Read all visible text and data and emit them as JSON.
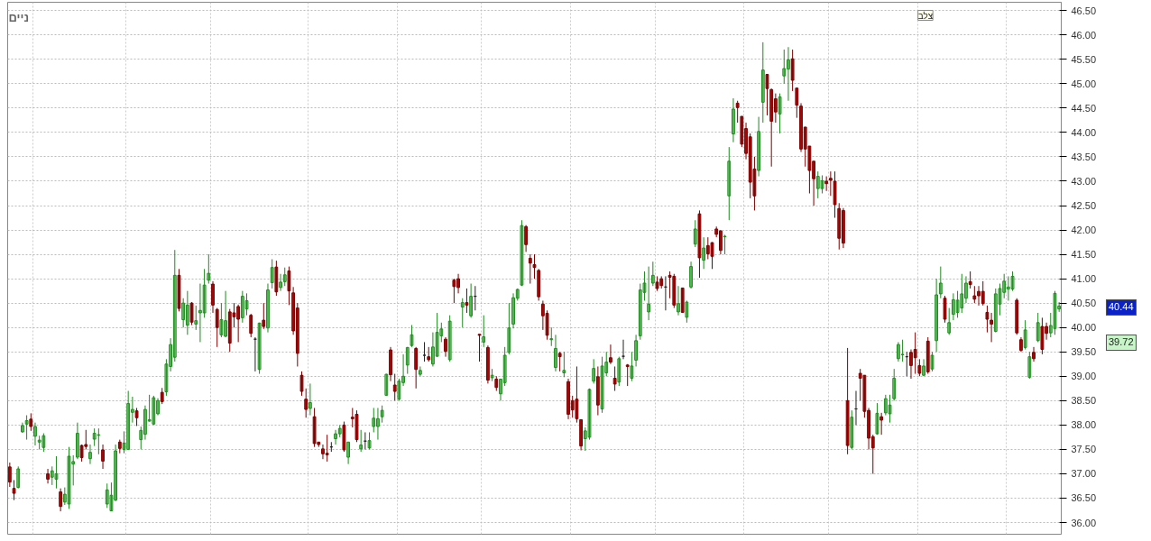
{
  "chart_data": {
    "type": "candlestick",
    "categories": [
      null,
      null,
      null,
      null,
      null,
      null,
      null,
      null,
      null,
      null,
      null,
      null,
      null,
      null,
      null,
      null,
      null,
      null,
      null,
      null,
      null,
      null,
      null,
      null,
      null,
      null,
      null,
      null,
      null,
      null,
      null,
      null,
      null,
      null,
      null,
      null,
      null,
      null,
      null,
      null,
      null,
      null,
      null,
      null,
      null,
      null,
      null,
      null,
      null,
      null,
      null,
      null,
      null,
      null,
      null,
      null,
      null,
      null,
      null,
      null,
      null,
      null,
      null,
      null,
      null,
      null,
      null,
      null,
      null,
      null,
      null,
      null,
      null,
      null,
      null,
      null,
      null,
      null,
      null,
      null,
      null,
      null,
      null,
      null,
      null,
      null,
      null,
      null,
      null,
      null,
      null,
      null,
      null,
      null,
      null,
      null,
      null,
      null,
      null,
      null,
      null,
      null,
      null,
      null,
      null,
      null,
      null,
      null,
      null,
      null,
      null,
      null,
      null,
      null,
      null,
      null,
      null,
      null,
      null,
      null,
      null,
      null,
      null,
      null,
      null,
      null,
      null,
      null,
      null,
      null,
      null,
      null,
      null,
      null,
      null,
      null,
      null,
      null,
      null,
      null,
      null,
      null,
      null,
      null,
      null,
      null,
      null,
      null,
      null,
      null,
      null,
      null,
      null,
      null,
      null,
      null,
      null,
      null,
      null,
      null,
      null,
      null,
      null,
      null,
      null,
      null,
      null,
      null,
      null,
      null,
      null,
      null,
      null,
      null,
      null,
      null,
      null,
      null,
      null,
      null,
      null,
      null,
      null,
      null,
      null,
      null,
      null,
      null,
      null,
      null,
      null,
      null,
      null,
      null,
      null,
      null,
      null,
      null,
      null,
      null,
      null,
      null,
      null,
      null,
      null,
      null,
      null,
      null,
      null,
      null,
      null,
      null,
      null,
      null,
      null,
      null,
      null,
      null,
      null,
      null,
      null,
      null,
      null,
      null,
      null,
      null,
      null,
      null,
      null,
      null,
      null,
      null,
      null,
      null,
      null,
      null,
      null,
      null,
      null,
      null,
      null,
      null,
      null,
      null,
      null,
      null,
      null,
      null,
      null
    ],
    "ohlc": [
      [
        37.14,
        37.23,
        36.73,
        36.83
      ],
      [
        36.7,
        36.87,
        36.46,
        36.6
      ],
      [
        36.72,
        37.15,
        36.7,
        37.1
      ],
      [
        37.86,
        38.05,
        37.84,
        37.99
      ],
      [
        38.02,
        38.2,
        37.7,
        38.09
      ],
      [
        38.12,
        38.24,
        37.88,
        37.97
      ],
      [
        37.77,
        38.05,
        37.58,
        37.97
      ],
      [
        37.65,
        37.78,
        37.5,
        37.69
      ],
      [
        37.54,
        37.83,
        37.45,
        37.78
      ],
      [
        37.0,
        37.1,
        36.8,
        36.89
      ],
      [
        36.93,
        37.15,
        36.77,
        37.06
      ],
      [
        36.89,
        37.36,
        36.7,
        37.0
      ],
      [
        36.63,
        36.7,
        36.23,
        36.33
      ],
      [
        36.42,
        36.72,
        36.36,
        36.58
      ],
      [
        36.38,
        37.55,
        36.28,
        37.36
      ],
      [
        37.2,
        37.38,
        36.76,
        37.25
      ],
      [
        37.34,
        38.05,
        37.3,
        37.83
      ],
      [
        37.58,
        37.6,
        37.25,
        37.33
      ],
      [
        37.6,
        37.9,
        37.5,
        37.56
      ],
      [
        37.31,
        37.6,
        37.2,
        37.44
      ],
      [
        37.71,
        37.93,
        37.57,
        37.83
      ],
      [
        37.79,
        37.93,
        37.4,
        37.8
      ],
      [
        37.49,
        37.6,
        37.1,
        37.26
      ],
      [
        36.38,
        36.8,
        36.3,
        36.67
      ],
      [
        36.24,
        36.82,
        36.24,
        36.56
      ],
      [
        36.46,
        37.6,
        36.44,
        37.47
      ],
      [
        37.65,
        37.7,
        37.42,
        37.52
      ],
      [
        37.5,
        37.87,
        37.42,
        37.63
      ],
      [
        37.5,
        38.7,
        37.5,
        38.44
      ],
      [
        38.26,
        38.58,
        38.05,
        38.32
      ],
      [
        38.29,
        38.35,
        37.98,
        38.15
      ],
      [
        37.7,
        37.97,
        37.5,
        37.89
      ],
      [
        37.81,
        38.4,
        37.7,
        38.32
      ],
      [
        38.08,
        38.62,
        38.07,
        38.11
      ],
      [
        38.02,
        38.6,
        38.0,
        38.56
      ],
      [
        38.23,
        38.55,
        38.2,
        38.5
      ],
      [
        38.67,
        38.76,
        38.43,
        38.48
      ],
      [
        38.68,
        39.35,
        38.6,
        39.25
      ],
      [
        39.2,
        39.78,
        39.1,
        39.65
      ],
      [
        39.39,
        41.59,
        39.3,
        41.07
      ],
      [
        41.07,
        41.2,
        40.33,
        40.39
      ],
      [
        40.16,
        40.6,
        40.0,
        40.5
      ],
      [
        40.05,
        40.75,
        39.85,
        40.46
      ],
      [
        40.5,
        40.52,
        40.05,
        40.11
      ],
      [
        40.07,
        40.45,
        39.95,
        40.14
      ],
      [
        40.3,
        40.9,
        39.7,
        40.35
      ],
      [
        40.3,
        41.2,
        40.2,
        40.87
      ],
      [
        40.97,
        41.5,
        40.9,
        41.11
      ],
      [
        40.89,
        40.95,
        40.3,
        40.46
      ],
      [
        40.37,
        40.4,
        39.6,
        40.0
      ],
      [
        39.85,
        40.5,
        39.8,
        40.16
      ],
      [
        39.82,
        40.75,
        39.8,
        40.14
      ],
      [
        40.32,
        40.38,
        39.5,
        39.68
      ],
      [
        40.3,
        40.5,
        40.0,
        40.22
      ],
      [
        40.43,
        40.47,
        39.7,
        40.17
      ],
      [
        40.2,
        40.75,
        40.1,
        40.64
      ],
      [
        40.38,
        40.7,
        40.25,
        40.55
      ],
      [
        40.25,
        40.28,
        39.8,
        39.88
      ],
      [
        39.76,
        39.8,
        39.1,
        39.76
      ],
      [
        39.14,
        40.1,
        39.05,
        40.09
      ],
      [
        40.15,
        40.5,
        39.97,
        40.02
      ],
      [
        39.99,
        40.9,
        39.9,
        40.77
      ],
      [
        40.92,
        41.4,
        40.8,
        41.23
      ],
      [
        41.24,
        41.37,
        40.65,
        40.73
      ],
      [
        40.82,
        41.1,
        40.75,
        40.93
      ],
      [
        40.94,
        41.23,
        40.85,
        41.08
      ],
      [
        41.16,
        41.25,
        40.46,
        40.75
      ],
      [
        40.71,
        40.83,
        39.85,
        39.93
      ],
      [
        40.4,
        40.5,
        39.2,
        39.47
      ],
      [
        39.02,
        39.1,
        38.6,
        38.69
      ],
      [
        38.53,
        38.75,
        38.15,
        38.32
      ],
      [
        38.34,
        38.85,
        38.2,
        38.46
      ],
      [
        38.17,
        38.35,
        37.55,
        37.62
      ],
      [
        37.65,
        37.65,
        37.55,
        37.6
      ],
      [
        37.51,
        37.6,
        37.3,
        37.41
      ],
      [
        37.42,
        37.8,
        37.25,
        37.39
      ],
      [
        37.55,
        37.65,
        37.45,
        37.55
      ],
      [
        37.72,
        37.9,
        37.6,
        37.82
      ],
      [
        37.82,
        38.0,
        37.75,
        37.93
      ],
      [
        38.0,
        38.07,
        37.45,
        37.49
      ],
      [
        37.34,
        37.65,
        37.2,
        37.65
      ],
      [
        38.16,
        38.35,
        37.95,
        38.13
      ],
      [
        38.22,
        38.3,
        37.65,
        37.7
      ],
      [
        37.51,
        37.9,
        37.45,
        37.59
      ],
      [
        37.67,
        37.85,
        37.5,
        37.67
      ],
      [
        37.53,
        37.85,
        37.5,
        37.68
      ],
      [
        37.97,
        38.35,
        37.85,
        38.14
      ],
      [
        37.97,
        38.35,
        37.7,
        38.13
      ],
      [
        38.17,
        38.4,
        38.05,
        38.3
      ],
      [
        38.61,
        39.05,
        38.6,
        39.04
      ],
      [
        39.54,
        39.6,
        38.9,
        39.03
      ],
      [
        38.82,
        39.05,
        38.5,
        38.69
      ],
      [
        38.53,
        38.95,
        38.5,
        38.9
      ],
      [
        38.87,
        39.45,
        38.8,
        39.0
      ],
      [
        39.23,
        39.6,
        39.05,
        39.59
      ],
      [
        39.63,
        40.05,
        39.6,
        39.85
      ],
      [
        39.57,
        39.6,
        38.75,
        39.14
      ],
      [
        39.04,
        39.2,
        39.0,
        39.12
      ],
      [
        39.43,
        39.7,
        39.3,
        39.43
      ],
      [
        39.4,
        39.6,
        39.3,
        39.34
      ],
      [
        39.25,
        39.9,
        39.2,
        39.6
      ],
      [
        39.41,
        40.3,
        39.4,
        39.9
      ],
      [
        39.83,
        40.1,
        39.7,
        39.97
      ],
      [
        39.76,
        39.8,
        39.4,
        39.51
      ],
      [
        39.34,
        40.25,
        39.3,
        40.13
      ],
      [
        40.97,
        41.0,
        40.5,
        40.84
      ],
      [
        41.0,
        41.1,
        40.7,
        40.82
      ],
      [
        40.42,
        40.6,
        40.0,
        40.51
      ],
      [
        40.51,
        40.8,
        40.3,
        40.46
      ],
      [
        40.24,
        40.9,
        40.2,
        40.64
      ],
      [
        40.64,
        40.85,
        40.35,
        40.64
      ],
      [
        39.86,
        39.86,
        39.3,
        39.84
      ],
      [
        39.7,
        40.25,
        39.6,
        39.81
      ],
      [
        39.59,
        39.63,
        38.85,
        38.92
      ],
      [
        38.97,
        39.15,
        38.9,
        39.02
      ],
      [
        38.94,
        39.0,
        38.7,
        38.77
      ],
      [
        38.64,
        38.95,
        38.5,
        38.94
      ],
      [
        38.87,
        39.6,
        38.8,
        39.43
      ],
      [
        39.49,
        40.5,
        39.45,
        39.99
      ],
      [
        40.07,
        40.7,
        39.98,
        40.61
      ],
      [
        40.6,
        40.8,
        40.55,
        40.78
      ],
      [
        40.87,
        42.2,
        40.85,
        42.09
      ],
      [
        42.07,
        42.1,
        41.55,
        41.7
      ],
      [
        41.42,
        41.5,
        40.9,
        41.32
      ],
      [
        41.29,
        41.5,
        41.0,
        41.23
      ],
      [
        41.17,
        41.2,
        40.55,
        40.63
      ],
      [
        40.48,
        40.55,
        39.95,
        40.24
      ],
      [
        40.29,
        40.35,
        39.75,
        39.84
      ],
      [
        39.75,
        40.0,
        39.62,
        39.77
      ],
      [
        39.18,
        39.85,
        39.1,
        39.57
      ],
      [
        39.47,
        39.5,
        39.1,
        39.4
      ],
      [
        39.07,
        39.5,
        38.98,
        39.12
      ],
      [
        38.89,
        38.95,
        38.12,
        38.22
      ],
      [
        38.5,
        38.6,
        38.15,
        38.31
      ],
      [
        38.53,
        39.2,
        38.05,
        38.13
      ],
      [
        38.11,
        38.11,
        37.48,
        37.57
      ],
      [
        37.72,
        37.95,
        37.47,
        37.88
      ],
      [
        37.75,
        38.75,
        37.7,
        38.73
      ],
      [
        38.9,
        39.35,
        38.85,
        39.16
      ],
      [
        38.99,
        39.2,
        38.2,
        38.41
      ],
      [
        38.33,
        39.4,
        38.25,
        39.21
      ],
      [
        39.07,
        39.5,
        39.0,
        39.29
      ],
      [
        39.38,
        39.65,
        39.25,
        39.29
      ],
      [
        38.96,
        39.2,
        38.7,
        38.84
      ],
      [
        38.88,
        39.4,
        38.8,
        39.36
      ],
      [
        39.41,
        39.75,
        39.35,
        39.41
      ],
      [
        39.23,
        39.25,
        38.8,
        39.2
      ],
      [
        38.96,
        39.5,
        38.9,
        39.21
      ],
      [
        39.33,
        39.85,
        39.2,
        39.73
      ],
      [
        39.83,
        40.9,
        39.75,
        40.77
      ],
      [
        40.72,
        41.15,
        40.55,
        40.91
      ],
      [
        40.32,
        41.25,
        40.15,
        40.48
      ],
      [
        40.91,
        41.35,
        40.85,
        41.07
      ],
      [
        40.93,
        41.05,
        40.75,
        40.8
      ],
      [
        41.0,
        41.05,
        40.8,
        40.86
      ],
      [
        40.83,
        41.05,
        40.35,
        40.83
      ],
      [
        41.07,
        41.15,
        40.6,
        41.03
      ],
      [
        41.05,
        41.1,
        40.4,
        40.46
      ],
      [
        40.32,
        40.85,
        40.25,
        40.49
      ],
      [
        40.81,
        40.81,
        40.3,
        40.31
      ],
      [
        40.21,
        40.55,
        40.1,
        40.52
      ],
      [
        40.83,
        41.35,
        40.8,
        41.25
      ],
      [
        41.71,
        42.2,
        41.65,
        42.02
      ],
      [
        42.33,
        42.4,
        41.02,
        41.43
      ],
      [
        41.38,
        41.85,
        41.2,
        41.63
      ],
      [
        41.68,
        41.85,
        41.4,
        41.51
      ],
      [
        41.74,
        41.75,
        41.2,
        41.46
      ],
      [
        42.02,
        42.07,
        41.85,
        41.91
      ],
      [
        41.98,
        42.0,
        41.5,
        41.58
      ],
      [
        41.86,
        41.9,
        41.5,
        41.87
      ],
      [
        42.7,
        43.7,
        42.2,
        43.41
      ],
      [
        43.97,
        44.7,
        43.8,
        44.48
      ],
      [
        44.6,
        44.65,
        44.2,
        44.51
      ],
      [
        44.33,
        44.33,
        43.7,
        43.76
      ],
      [
        44.08,
        44.2,
        43.45,
        43.57
      ],
      [
        43.91,
        43.98,
        42.65,
        42.98
      ],
      [
        43.25,
        43.5,
        42.4,
        42.7
      ],
      [
        43.22,
        44.32,
        43.1,
        44.02
      ],
      [
        44.62,
        45.85,
        44.2,
        45.28
      ],
      [
        45.19,
        45.2,
        44.35,
        44.9
      ],
      [
        44.88,
        44.9,
        43.3,
        44.23
      ],
      [
        44.69,
        44.8,
        44.2,
        44.42
      ],
      [
        44.38,
        44.8,
        43.98,
        44.73
      ],
      [
        45.16,
        45.7,
        45.0,
        45.31
      ],
      [
        45.3,
        45.75,
        44.65,
        45.49
      ],
      [
        45.51,
        45.7,
        44.85,
        45.07
      ],
      [
        44.91,
        44.91,
        44.3,
        44.56
      ],
      [
        44.54,
        44.6,
        43.6,
        43.66
      ],
      [
        44.11,
        44.11,
        43.3,
        43.66
      ],
      [
        43.72,
        43.72,
        42.75,
        43.22
      ],
      [
        43.41,
        43.41,
        42.5,
        43.05
      ],
      [
        42.85,
        43.2,
        42.65,
        43.1
      ],
      [
        42.85,
        43.12,
        42.75,
        43.01
      ],
      [
        43.0,
        43.1,
        42.8,
        42.95
      ],
      [
        43.06,
        43.2,
        42.7,
        43.02
      ],
      [
        43.0,
        43.2,
        42.25,
        42.52
      ],
      [
        42.44,
        42.55,
        41.6,
        41.83
      ],
      [
        42.4,
        42.45,
        41.63,
        41.73
      ],
      [
        38.5,
        39.58,
        37.4,
        37.58
      ],
      [
        37.54,
        38.3,
        37.5,
        38.16
      ],
      [
        38.33,
        38.7,
        38.0,
        38.33
      ],
      [
        39.06,
        39.15,
        38.5,
        38.96
      ],
      [
        39.02,
        39.02,
        38.15,
        38.28
      ],
      [
        38.3,
        38.35,
        37.5,
        37.73
      ],
      [
        37.76,
        37.8,
        37.0,
        37.53
      ],
      [
        37.82,
        38.45,
        37.8,
        38.24
      ],
      [
        38.17,
        38.25,
        37.8,
        38.1
      ],
      [
        38.25,
        38.62,
        38.2,
        38.54
      ],
      [
        38.23,
        38.62,
        38.05,
        38.41
      ],
      [
        38.54,
        39.15,
        38.5,
        38.96
      ],
      [
        39.36,
        39.7,
        39.3,
        39.65
      ],
      [
        39.44,
        39.75,
        39.3,
        39.45
      ],
      [
        39.4,
        39.5,
        39.0,
        39.4
      ],
      [
        39.49,
        39.55,
        38.95,
        39.22
      ],
      [
        39.55,
        39.9,
        39.05,
        39.38
      ],
      [
        39.22,
        39.35,
        39.0,
        39.06
      ],
      [
        39.02,
        39.35,
        39.0,
        39.21
      ],
      [
        39.72,
        39.8,
        39.05,
        39.09
      ],
      [
        39.15,
        39.5,
        39.1,
        39.43
      ],
      [
        39.73,
        41.0,
        39.5,
        40.67
      ],
      [
        40.69,
        41.25,
        40.6,
        40.91
      ],
      [
        40.6,
        40.65,
        40.1,
        40.17
      ],
      [
        39.89,
        40.4,
        39.85,
        40.1
      ],
      [
        40.27,
        40.7,
        40.15,
        40.57
      ],
      [
        40.31,
        40.75,
        40.2,
        40.56
      ],
      [
        40.4,
        41.1,
        40.3,
        40.69
      ],
      [
        40.6,
        41.05,
        40.5,
        40.91
      ],
      [
        40.94,
        41.15,
        40.8,
        40.88
      ],
      [
        40.65,
        40.85,
        40.5,
        40.58
      ],
      [
        40.74,
        40.85,
        40.45,
        40.65
      ],
      [
        40.74,
        40.95,
        40.45,
        40.49
      ],
      [
        40.31,
        40.45,
        39.9,
        40.17
      ],
      [
        40.15,
        40.3,
        39.7,
        40.07
      ],
      [
        39.92,
        40.8,
        39.9,
        40.69
      ],
      [
        40.48,
        40.9,
        40.25,
        40.8
      ],
      [
        40.72,
        41.1,
        40.6,
        40.95
      ],
      [
        40.79,
        41.05,
        40.55,
        40.83
      ],
      [
        40.79,
        41.15,
        40.75,
        41.05
      ],
      [
        40.56,
        40.6,
        39.85,
        39.89
      ],
      [
        39.75,
        39.8,
        39.5,
        39.53
      ],
      [
        39.59,
        40.15,
        39.55,
        39.95
      ],
      [
        38.98,
        39.5,
        38.95,
        39.4
      ],
      [
        39.49,
        39.6,
        39.3,
        39.36
      ],
      [
        39.73,
        40.3,
        39.7,
        40.1
      ],
      [
        40.02,
        40.2,
        39.45,
        39.55
      ],
      [
        40.02,
        40.1,
        39.75,
        39.88
      ],
      [
        39.89,
        40.3,
        39.8,
        40.04
      ],
      [
        39.98,
        40.75,
        39.85,
        40.7
      ],
      [
        40.38,
        40.52,
        40.32,
        40.44
      ]
    ],
    "ylim": [
      35.76,
      46.67
    ],
    "yticks": [
      {
        "value": 36,
        "label": "36.00"
      },
      {
        "value": 36.5,
        "label": "36.50"
      },
      {
        "value": 37,
        "label": "37.00"
      },
      {
        "value": 37.5,
        "label": "37.50"
      },
      {
        "value": 38,
        "label": "38.00"
      },
      {
        "value": 38.5,
        "label": "38.50"
      },
      {
        "value": 39,
        "label": "39.00"
      },
      {
        "value": 39.5,
        "label": "39.50"
      },
      {
        "value": 40,
        "label": "40.00"
      },
      {
        "value": 40.5,
        "label": "40.50"
      },
      {
        "value": 41,
        "label": "41.00"
      },
      {
        "value": 41.5,
        "label": "41.50"
      },
      {
        "value": 42,
        "label": "42.00"
      },
      {
        "value": 42.5,
        "label": "42.50"
      },
      {
        "value": 43,
        "label": "43.00"
      },
      {
        "value": 43.5,
        "label": "43.50"
      },
      {
        "value": 44,
        "label": "44.00"
      },
      {
        "value": 44.5,
        "label": "44.50"
      },
      {
        "value": 45,
        "label": "45.00"
      },
      {
        "value": 45.5,
        "label": "45.50"
      },
      {
        "value": 46,
        "label": "46.00"
      },
      {
        "value": 46.5,
        "label": "46.50"
      }
    ],
    "grid": true,
    "tick_labels": "y",
    "annotations": [
      "ניים",
      "צלב",
      "40.44",
      "39.72"
    ]
  }
}
